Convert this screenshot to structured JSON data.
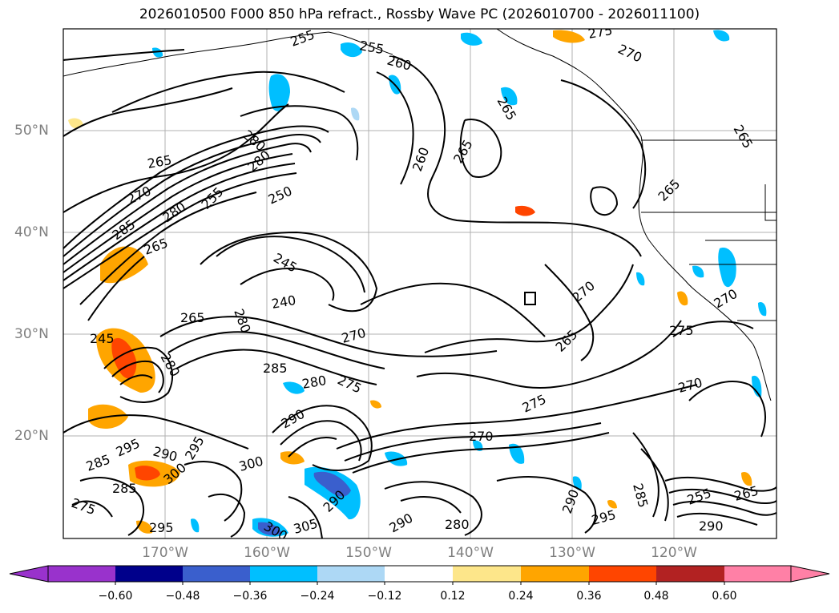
{
  "title": "2026010500 F000 850 hPa refract., Rossby Wave PC (2026010700 - 2026011100)",
  "lat_labels": [
    "50°N",
    "40°N",
    "30°N",
    "20°N"
  ],
  "lon_labels": [
    "170°W",
    "160°W",
    "150°W",
    "140°W",
    "130°W",
    "120°W"
  ],
  "colorbar": {
    "tick_labels": [
      "−0.60",
      "−0.48",
      "−0.36",
      "−0.24",
      "−0.12",
      "0.12",
      "0.24",
      "0.36",
      "0.48",
      "0.60"
    ],
    "colors": [
      "#9932cc",
      "#00008b",
      "#3a5fcd",
      "#00bfff",
      "#add8f5",
      "#ffffff",
      "#fde68a",
      "#ffa500",
      "#ff4500",
      "#b22222",
      "#ff80a6"
    ]
  },
  "contour_labels": [
    "255",
    "255",
    "260",
    "275",
    "270",
    "265",
    "265",
    "265",
    "265",
    "260",
    "280",
    "280",
    "265",
    "250",
    "270",
    "285",
    "280",
    "255",
    "265",
    "245",
    "240",
    "265",
    "280",
    "280",
    "270",
    "285",
    "280",
    "275",
    "270",
    "270",
    "275",
    "270",
    "265",
    "270",
    "275",
    "295",
    "290",
    "285",
    "300",
    "290",
    "285",
    "295",
    "300",
    "275",
    "295",
    "300",
    "305",
    "290",
    "280",
    "290",
    "295",
    "290",
    "285",
    "255",
    "265",
    "290",
    "245"
  ],
  "colors": {
    "frame": "#000000",
    "grid": "#b0b0b0",
    "axis_label": "#7f7f7f"
  }
}
